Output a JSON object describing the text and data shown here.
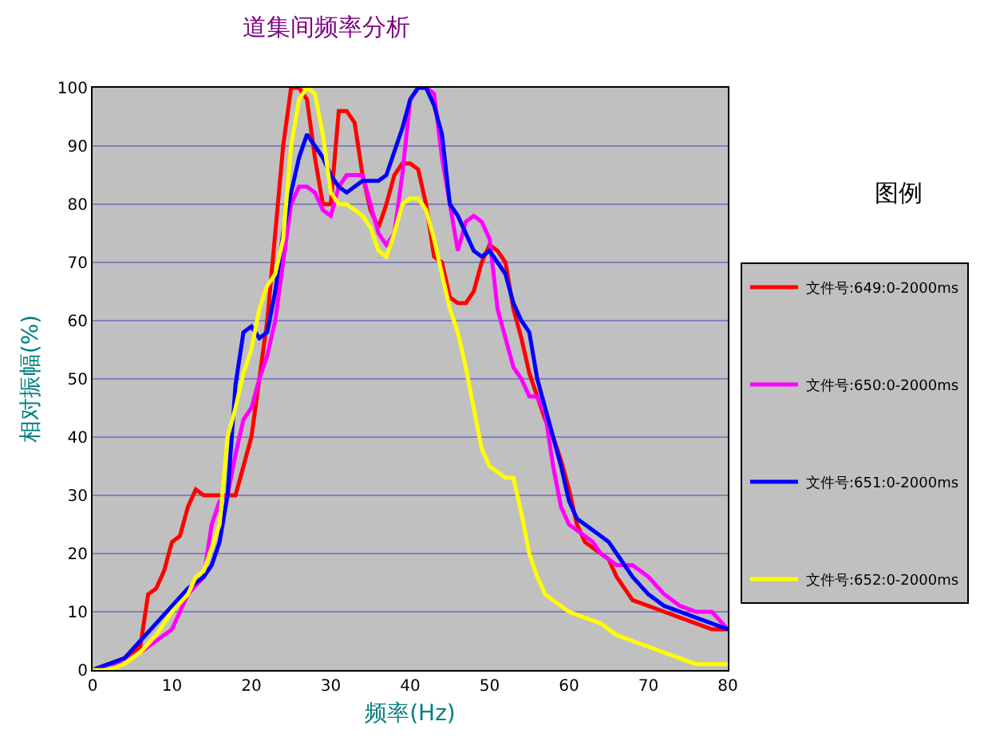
{
  "chart_data": {
    "type": "line",
    "title": "道集间频率分析",
    "xlabel": "频率(Hz)",
    "ylabel": "相对振幅(%)",
    "legend_title": "图例",
    "xlim": [
      0,
      80
    ],
    "xticks": [
      0,
      10,
      20,
      30,
      40,
      50,
      60,
      70,
      80
    ],
    "ylim": [
      0,
      100
    ],
    "yticks": [
      0,
      10,
      20,
      30,
      40,
      50,
      60,
      70,
      80,
      90,
      100
    ],
    "grid": "y",
    "legend": "right",
    "marker": "none",
    "line_style": "solid",
    "series": [
      {
        "name": "文件号:649:0-2000ms",
        "color": "#ff0000",
        "x": [
          0,
          2,
          4,
          6,
          7,
          8,
          9,
          10,
          11,
          12,
          13,
          14,
          16,
          18,
          19,
          20,
          21,
          22,
          23,
          24,
          25,
          26,
          27,
          28,
          29,
          30,
          31,
          32,
          33,
          34,
          35,
          36,
          37,
          38,
          39,
          40,
          41,
          42,
          43,
          44,
          45,
          46,
          47,
          48,
          49,
          50,
          51,
          52,
          53,
          54,
          55,
          56,
          57,
          58,
          59,
          60,
          61,
          62,
          63,
          64,
          65,
          66,
          68,
          70,
          72,
          74,
          76,
          78,
          80
        ],
        "values": [
          0,
          1,
          2,
          4,
          13,
          14,
          17,
          22,
          23,
          28,
          31,
          30,
          30,
          30,
          35,
          40,
          50,
          60,
          75,
          90,
          100,
          100,
          98,
          88,
          80,
          80,
          96,
          96,
          94,
          85,
          79,
          76,
          80,
          85,
          87,
          87,
          86,
          80,
          71,
          70,
          64,
          63,
          63,
          65,
          70,
          73,
          72,
          70,
          62,
          57,
          51,
          47,
          43,
          40,
          36,
          31,
          25,
          22,
          21,
          20,
          19,
          16,
          12,
          11,
          10,
          9,
          8,
          7,
          7
        ]
      },
      {
        "name": "文件号:650:0-2000ms",
        "color": "#ff00ff",
        "x": [
          0,
          2,
          4,
          6,
          8,
          10,
          11,
          12,
          14,
          15,
          16,
          17,
          18,
          19,
          20,
          21,
          22,
          23,
          24,
          25,
          26,
          27,
          28,
          29,
          30,
          31,
          32,
          33,
          34,
          35,
          36,
          37,
          38,
          39,
          40,
          41,
          42,
          43,
          44,
          45,
          46,
          47,
          48,
          49,
          50,
          51,
          52,
          53,
          54,
          55,
          56,
          57,
          58,
          59,
          60,
          61,
          62,
          63,
          64,
          65,
          66,
          68,
          70,
          72,
          74,
          76,
          78,
          80
        ],
        "values": [
          0,
          1,
          1,
          3,
          5,
          7,
          10,
          13,
          16,
          25,
          29,
          30,
          37,
          43,
          45,
          50,
          54,
          60,
          70,
          80,
          83,
          83,
          82,
          79,
          78,
          83,
          85,
          85,
          85,
          80,
          75,
          73,
          75,
          85,
          98,
          100,
          100,
          99,
          88,
          80,
          72,
          77,
          78,
          77,
          74,
          62,
          57,
          52,
          50,
          47,
          47,
          44,
          35,
          28,
          25,
          24,
          23,
          22,
          20,
          19,
          18,
          18,
          16,
          13,
          11,
          10,
          10,
          7
        ]
      },
      {
        "name": "文件号:651:0-2000ms",
        "color": "#0000ff",
        "x": [
          0,
          2,
          4,
          6,
          8,
          10,
          12,
          14,
          15,
          16,
          17,
          18,
          19,
          20,
          21,
          22,
          23,
          24,
          25,
          26,
          27,
          28,
          29,
          30,
          31,
          32,
          33,
          34,
          35,
          36,
          37,
          38,
          39,
          40,
          41,
          42,
          43,
          44,
          45,
          46,
          47,
          48,
          49,
          50,
          51,
          52,
          53,
          54,
          55,
          56,
          57,
          58,
          59,
          60,
          61,
          62,
          63,
          64,
          65,
          66,
          68,
          70,
          72,
          74,
          76,
          78,
          80
        ],
        "values": [
          0,
          1,
          2,
          5,
          8,
          11,
          14,
          16,
          18,
          22,
          30,
          49,
          58,
          59,
          57,
          58,
          65,
          75,
          82,
          88,
          92,
          90,
          88,
          85,
          83,
          82,
          83,
          84,
          84,
          84,
          85,
          89,
          93,
          98,
          100,
          100,
          97,
          92,
          80,
          78,
          75,
          72,
          71,
          72,
          70,
          68,
          63,
          60,
          58,
          50,
          45,
          40,
          35,
          29,
          26,
          25,
          24,
          23,
          22,
          20,
          16,
          13,
          11,
          10,
          9,
          8,
          7
        ]
      },
      {
        "name": "文件号:652:0-2000ms",
        "color": "#ffff00",
        "x": [
          0,
          2,
          4,
          6,
          8,
          10,
          12,
          13,
          14,
          16,
          17,
          18,
          19,
          20,
          21,
          22,
          23,
          24,
          25,
          26,
          27,
          28,
          29,
          30,
          31,
          32,
          33,
          34,
          35,
          36,
          37,
          38,
          39,
          40,
          41,
          42,
          43,
          44,
          45,
          46,
          47,
          48,
          49,
          50,
          51,
          52,
          53,
          54,
          55,
          56,
          57,
          58,
          60,
          62,
          64,
          66,
          68,
          70,
          72,
          74,
          76,
          78,
          80
        ],
        "values": [
          0,
          0,
          1,
          3,
          6,
          10,
          13,
          16,
          17,
          25,
          40,
          45,
          51,
          55,
          62,
          66,
          68,
          74,
          90,
          98,
          100,
          99,
          92,
          82,
          80,
          80,
          79,
          78,
          76,
          72,
          71,
          75,
          80,
          81,
          81,
          79,
          74,
          68,
          62,
          58,
          52,
          45,
          38,
          35,
          34,
          33,
          33,
          27,
          20,
          16,
          13,
          12,
          10,
          9,
          8,
          6,
          5,
          4,
          3,
          2,
          1,
          1,
          1
        ]
      }
    ]
  }
}
